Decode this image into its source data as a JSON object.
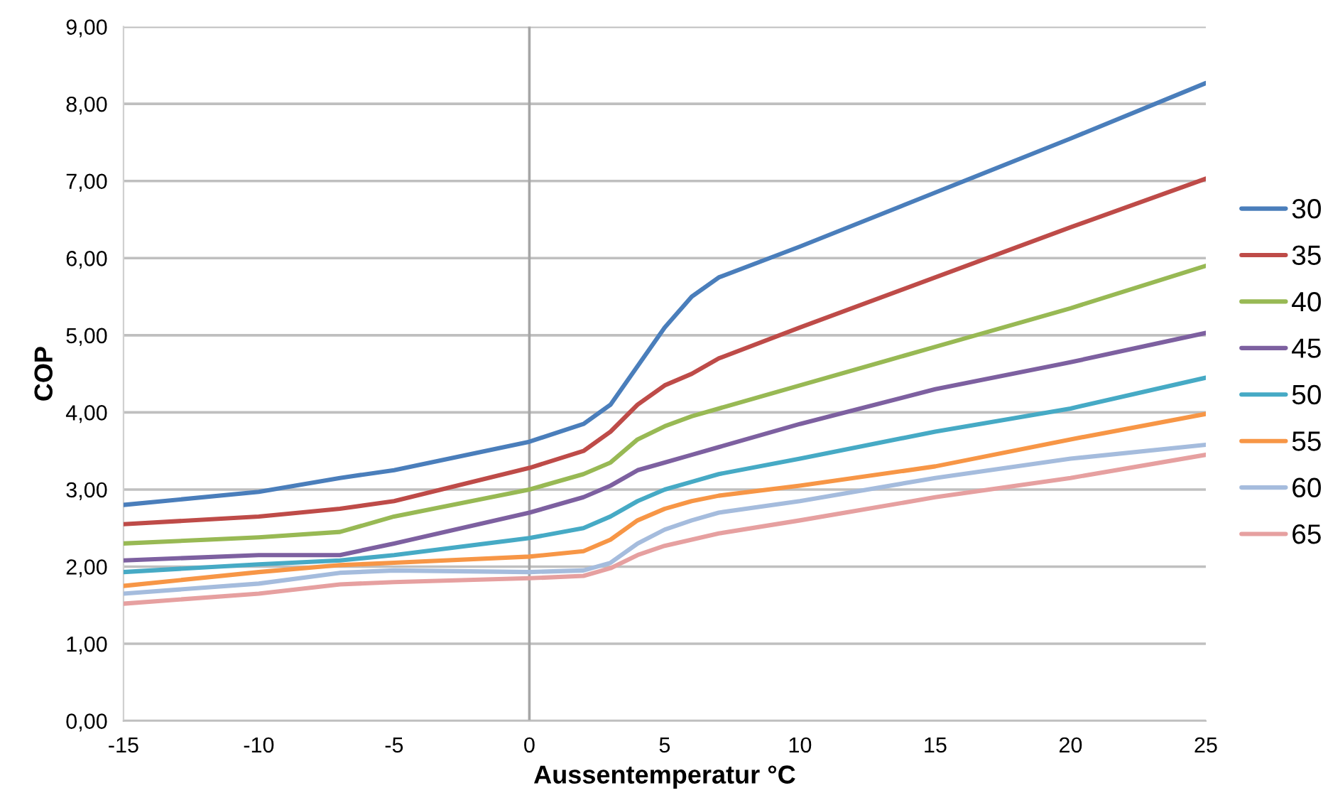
{
  "chart_data": {
    "type": "line",
    "xlabel": "Aussentemperatur °C",
    "ylabel": "COP",
    "x": [
      -15,
      -10,
      -7,
      -5,
      0,
      2,
      3,
      4,
      5,
      6,
      7,
      10,
      15,
      20,
      25
    ],
    "series": [
      {
        "name": "30",
        "color": "#4a7ebb",
        "values": [
          2.8,
          2.97,
          3.15,
          3.25,
          3.62,
          3.85,
          4.1,
          4.6,
          5.1,
          5.5,
          5.75,
          6.15,
          6.85,
          7.55,
          8.27
        ]
      },
      {
        "name": "35",
        "color": "#be4b48",
        "values": [
          2.55,
          2.65,
          2.75,
          2.85,
          3.28,
          3.5,
          3.75,
          4.1,
          4.35,
          4.5,
          4.7,
          5.1,
          5.75,
          6.4,
          7.03
        ]
      },
      {
        "name": "40",
        "color": "#98b954",
        "values": [
          2.3,
          2.38,
          2.45,
          2.65,
          3.0,
          3.2,
          3.35,
          3.65,
          3.82,
          3.95,
          4.05,
          4.35,
          4.85,
          5.35,
          5.9
        ]
      },
      {
        "name": "45",
        "color": "#7d60a0",
        "values": [
          2.08,
          2.15,
          2.15,
          2.3,
          2.7,
          2.9,
          3.05,
          3.25,
          3.35,
          3.45,
          3.55,
          3.85,
          4.3,
          4.65,
          5.03
        ]
      },
      {
        "name": "50",
        "color": "#46aac5",
        "values": [
          1.93,
          2.03,
          2.08,
          2.15,
          2.37,
          2.5,
          2.65,
          2.85,
          3.0,
          3.1,
          3.2,
          3.4,
          3.75,
          4.05,
          4.45
        ]
      },
      {
        "name": "55",
        "color": "#f79646",
        "values": [
          1.75,
          1.93,
          2.02,
          2.05,
          2.13,
          2.2,
          2.35,
          2.6,
          2.75,
          2.85,
          2.92,
          3.05,
          3.3,
          3.65,
          3.98
        ]
      },
      {
        "name": "60",
        "color": "#a5bcdd",
        "values": [
          1.65,
          1.78,
          1.92,
          1.95,
          1.93,
          1.95,
          2.05,
          2.3,
          2.48,
          2.6,
          2.7,
          2.85,
          3.15,
          3.4,
          3.58
        ]
      },
      {
        "name": "65",
        "color": "#e6a0a0",
        "values": [
          1.52,
          1.65,
          1.77,
          1.8,
          1.85,
          1.88,
          1.98,
          2.15,
          2.27,
          2.35,
          2.43,
          2.6,
          2.9,
          3.15,
          3.45
        ]
      }
    ],
    "xlim": [
      -15,
      25
    ],
    "xticks": [
      -15,
      -10,
      -5,
      0,
      5,
      10,
      15,
      20,
      25
    ],
    "ylim": [
      0,
      9
    ],
    "yticks": [
      {
        "value": 0,
        "label": "0,00"
      },
      {
        "value": 1,
        "label": "1,00"
      },
      {
        "value": 2,
        "label": "2,00"
      },
      {
        "value": 3,
        "label": "3,00"
      },
      {
        "value": 4,
        "label": "4,00"
      },
      {
        "value": 5,
        "label": "5,00"
      },
      {
        "value": 6,
        "label": "6,00"
      },
      {
        "value": 7,
        "label": "7,00"
      },
      {
        "value": 8,
        "label": "8,00"
      },
      {
        "value": 9,
        "label": "9,00"
      }
    ],
    "ref_lines": [
      {
        "axis": "x",
        "value": 0,
        "label": null,
        "color": "#a6a6a6"
      }
    ],
    "grid": "y",
    "legend": "right",
    "marker": "none",
    "line_style": "solid"
  }
}
